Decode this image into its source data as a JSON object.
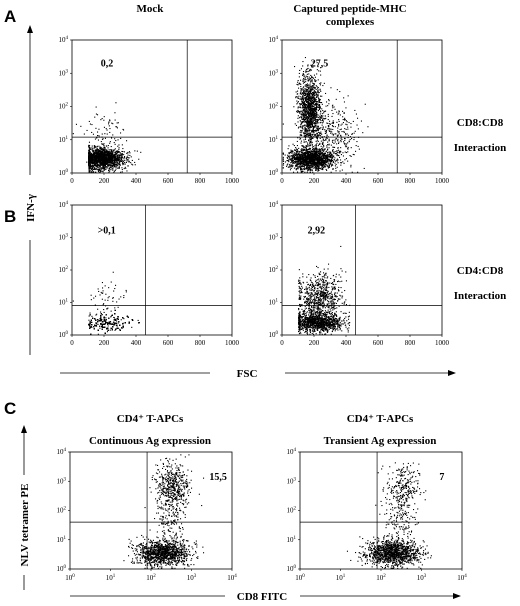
{
  "panels": {
    "A": {
      "letter": "A",
      "col_titles": [
        "Mock",
        "Captured peptide-MHC",
        "complexes"
      ],
      "right_label": [
        "CD8:CD8",
        "Interaction"
      ],
      "plots": [
        {
          "quadrant_value": "0,2"
        },
        {
          "quadrant_value": "27,5"
        }
      ]
    },
    "B": {
      "letter": "B",
      "right_label": [
        "CD4:CD8",
        "Interaction"
      ],
      "plots": [
        {
          "quadrant_value": ">0,1"
        },
        {
          "quadrant_value": "2,92"
        }
      ]
    },
    "AB_axes": {
      "ylabel": "IFN-γ",
      "xlabel": "FSC"
    },
    "C": {
      "letter": "C",
      "plots": [
        {
          "title": [
            "CD4⁺ T-APCs",
            "Continuous Ag expression"
          ],
          "quadrant_value": "15,5"
        },
        {
          "title": [
            "CD4⁺ T-APCs",
            "Transient  Ag expression"
          ],
          "quadrant_value": "7"
        }
      ],
      "ylabel": "NLV tetramer PE",
      "xlabel": "CD8 FITC"
    }
  },
  "ticks": {
    "linear_x": [
      "0",
      "200",
      "400",
      "600",
      "800",
      "1000"
    ],
    "log_exp": [
      "0",
      "1",
      "2",
      "3",
      "4"
    ]
  },
  "chart_data": [
    {
      "type": "scatter",
      "panel": "A-Mock",
      "x_scale": "linear",
      "y_scale": "log",
      "xlim": [
        0,
        1000
      ],
      "ylim": [
        1,
        10000
      ],
      "quadrant_gate": {
        "x": 720,
        "y": 12
      },
      "upper_right_percent": 0.2
    },
    {
      "type": "scatter",
      "panel": "A-Captured peptide-MHC complexes",
      "x_scale": "linear",
      "y_scale": "log",
      "xlim": [
        0,
        1000
      ],
      "ylim": [
        1,
        10000
      ],
      "quadrant_gate": {
        "x": 720,
        "y": 12
      },
      "upper_right_percent": 27.5
    },
    {
      "type": "scatter",
      "panel": "B-Mock",
      "x_scale": "linear",
      "y_scale": "log",
      "xlim": [
        0,
        1000
      ],
      "ylim": [
        1,
        10000
      ],
      "quadrant_gate": {
        "x": 460,
        "y": 8
      },
      "upper_right_percent": 0.1
    },
    {
      "type": "scatter",
      "panel": "B-Captured peptide-MHC complexes",
      "x_scale": "linear",
      "y_scale": "log",
      "xlim": [
        0,
        1000
      ],
      "ylim": [
        1,
        10000
      ],
      "quadrant_gate": {
        "x": 460,
        "y": 8
      },
      "upper_right_percent": 2.92
    },
    {
      "type": "scatter",
      "panel": "C-Continuous Ag expression",
      "x_scale": "log",
      "y_scale": "log",
      "xlim": [
        1,
        10000
      ],
      "ylim": [
        1,
        10000
      ],
      "quadrant_gate": {
        "x": 80,
        "y": 40
      },
      "upper_right_percent": 15.5
    },
    {
      "type": "scatter",
      "panel": "C-Transient Ag expression",
      "x_scale": "log",
      "y_scale": "log",
      "xlim": [
        1,
        10000
      ],
      "ylim": [
        1,
        10000
      ],
      "quadrant_gate": {
        "x": 80,
        "y": 40
      },
      "upper_right_percent": 7
    }
  ]
}
